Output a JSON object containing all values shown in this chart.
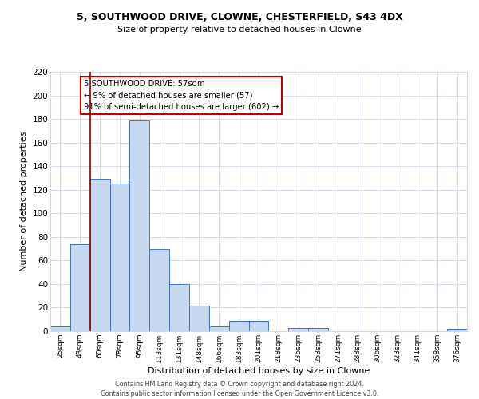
{
  "title1": "5, SOUTHWOOD DRIVE, CLOWNE, CHESTERFIELD, S43 4DX",
  "title2": "Size of property relative to detached houses in Clowne",
  "xlabel": "Distribution of detached houses by size in Clowne",
  "ylabel": "Number of detached properties",
  "bar_labels": [
    "25sqm",
    "43sqm",
    "60sqm",
    "78sqm",
    "95sqm",
    "113sqm",
    "131sqm",
    "148sqm",
    "166sqm",
    "183sqm",
    "201sqm",
    "218sqm",
    "236sqm",
    "253sqm",
    "271sqm",
    "288sqm",
    "306sqm",
    "323sqm",
    "341sqm",
    "358sqm",
    "376sqm"
  ],
  "bar_values": [
    4,
    74,
    129,
    125,
    179,
    70,
    40,
    22,
    4,
    9,
    9,
    0,
    3,
    3,
    0,
    0,
    0,
    0,
    0,
    0,
    2
  ],
  "bar_color": "#c6d9f1",
  "bar_edge_color": "#4472c4",
  "ylim": [
    0,
    220
  ],
  "yticks": [
    0,
    20,
    40,
    60,
    80,
    100,
    120,
    140,
    160,
    180,
    200,
    220
  ],
  "vline_index": 2,
  "vline_color": "#8b0000",
  "annotation_title": "5 SOUTHWOOD DRIVE: 57sqm",
  "annotation_line1": "← 9% of detached houses are smaller (57)",
  "annotation_line2": "91% of semi-detached houses are larger (602) →",
  "footer1": "Contains HM Land Registry data © Crown copyright and database right 2024.",
  "footer2": "Contains public sector information licensed under the Open Government Licence v3.0.",
  "bg_color": "#ffffff",
  "grid_color": "#d0d8e8",
  "annotation_box_edge": "#c00000"
}
